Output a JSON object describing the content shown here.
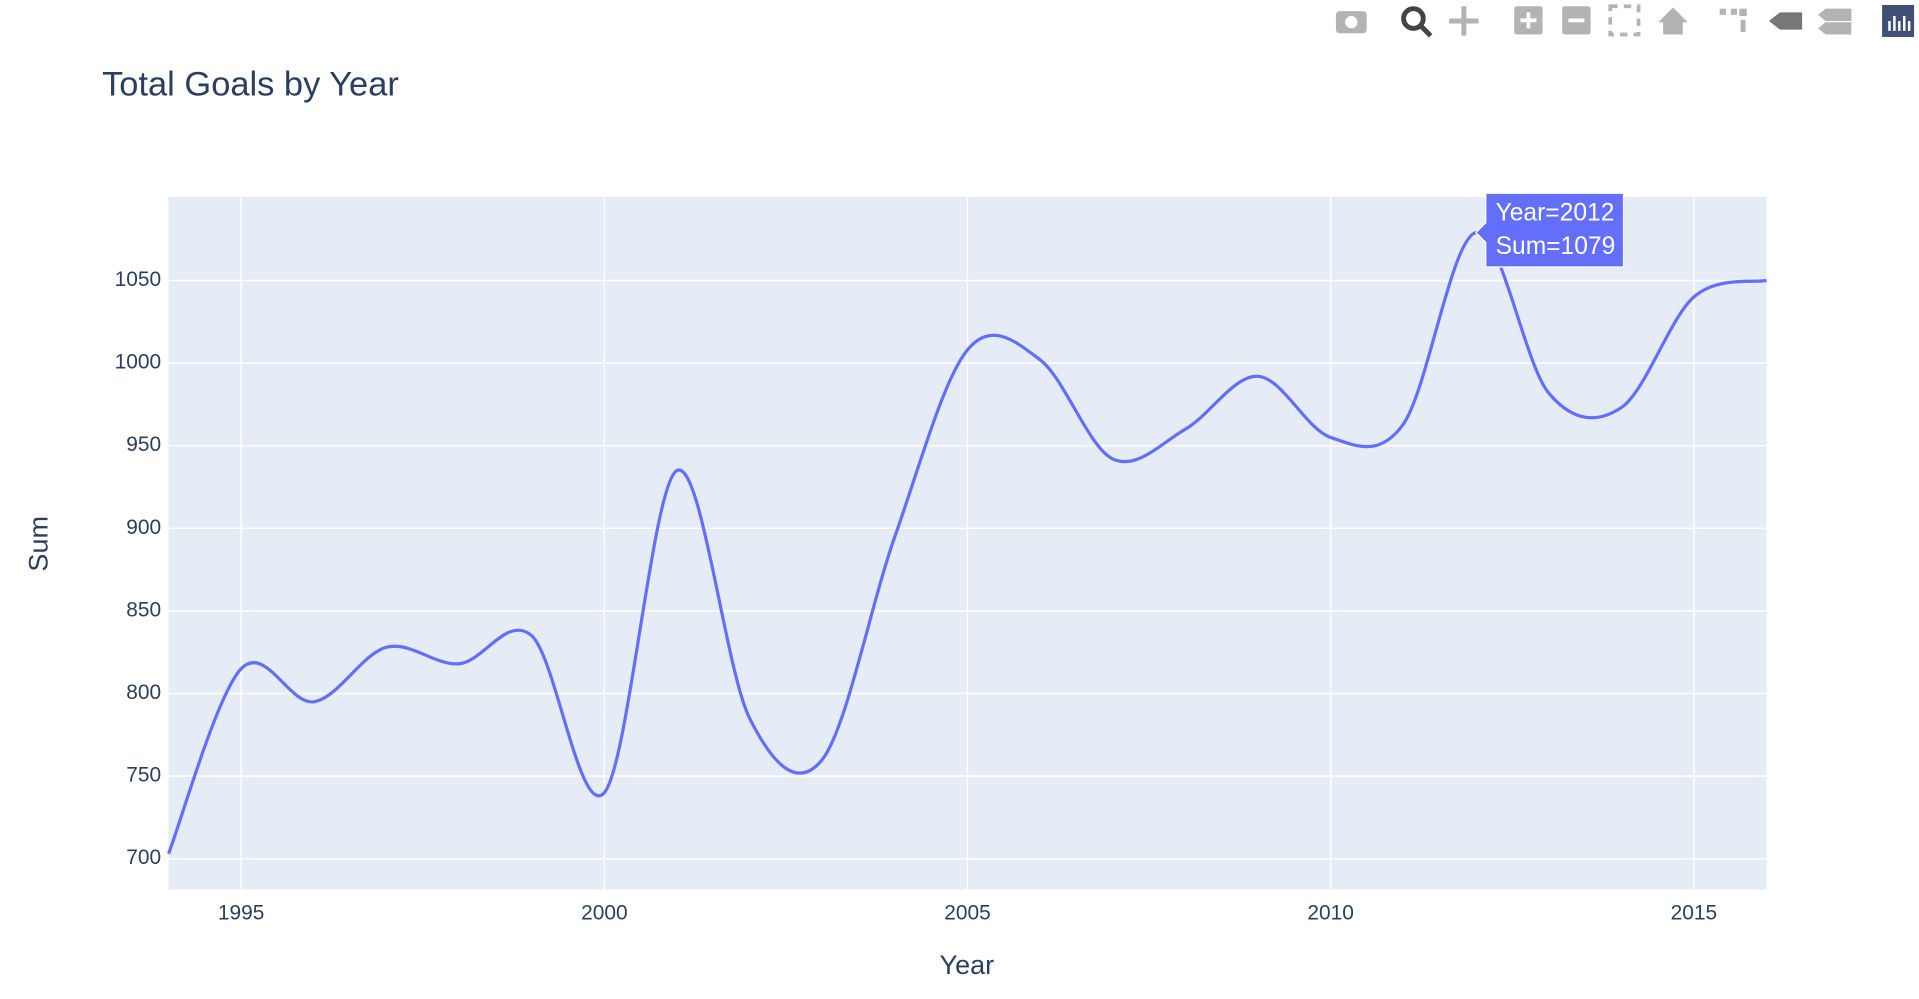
{
  "chart_data": {
    "type": "line",
    "title": "Total Goals by Year",
    "x_label": "Year",
    "y_label": "Sum",
    "x": [
      1994,
      1995,
      1996,
      1997,
      1998,
      1999,
      2000,
      2001,
      2002,
      2003,
      2004,
      2005,
      2006,
      2007,
      2008,
      2009,
      2010,
      2011,
      2012,
      2013,
      2014,
      2015,
      2016
    ],
    "series": [
      {
        "name": "Sum",
        "color": "#636efa",
        "values": [
          703,
          815,
          795,
          828,
          818,
          835,
          740,
          935,
          785,
          760,
          895,
          1008,
          1002,
          942,
          960,
          992,
          955,
          963,
          1079,
          982,
          973,
          1040,
          1050
        ]
      }
    ],
    "xlim": [
      1994,
      2016
    ],
    "xticks": [
      1995,
      2000,
      2005,
      2010,
      2015
    ],
    "ylim": [
      681.4,
      1100.6
    ],
    "yticks": [
      700,
      750,
      800,
      850,
      900,
      950,
      1000,
      1050
    ],
    "grid": true,
    "smooth": true,
    "hover": {
      "index": 18,
      "lines": [
        "Year=2012",
        "Sum=1079"
      ]
    }
  }
}
